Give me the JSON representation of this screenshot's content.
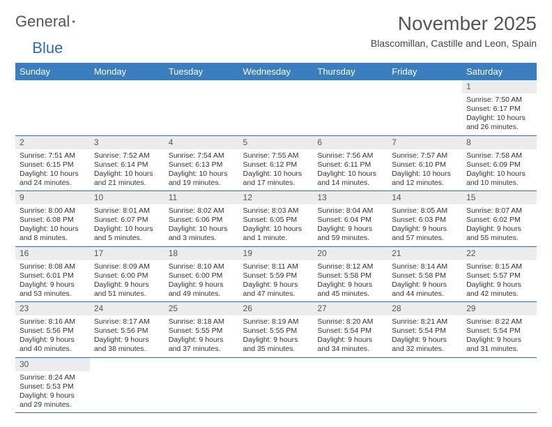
{
  "brand": {
    "part1": "General",
    "part2": "Blue"
  },
  "title": "November 2025",
  "subtitle": "Blascomillan, Castille and Leon, Spain",
  "weekdays": [
    "Sunday",
    "Monday",
    "Tuesday",
    "Wednesday",
    "Thursday",
    "Friday",
    "Saturday"
  ],
  "colors": {
    "header_bg": "#3a7ebf",
    "border": "#2f6fa8",
    "daynum_bg": "#ececec"
  },
  "weeks": [
    [
      null,
      null,
      null,
      null,
      null,
      null,
      {
        "n": "1",
        "sr": "Sunrise: 7:50 AM",
        "ss": "Sunset: 6:17 PM",
        "dl": "Daylight: 10 hours and 26 minutes."
      }
    ],
    [
      {
        "n": "2",
        "sr": "Sunrise: 7:51 AM",
        "ss": "Sunset: 6:15 PM",
        "dl": "Daylight: 10 hours and 24 minutes."
      },
      {
        "n": "3",
        "sr": "Sunrise: 7:52 AM",
        "ss": "Sunset: 6:14 PM",
        "dl": "Daylight: 10 hours and 21 minutes."
      },
      {
        "n": "4",
        "sr": "Sunrise: 7:54 AM",
        "ss": "Sunset: 6:13 PM",
        "dl": "Daylight: 10 hours and 19 minutes."
      },
      {
        "n": "5",
        "sr": "Sunrise: 7:55 AM",
        "ss": "Sunset: 6:12 PM",
        "dl": "Daylight: 10 hours and 17 minutes."
      },
      {
        "n": "6",
        "sr": "Sunrise: 7:56 AM",
        "ss": "Sunset: 6:11 PM",
        "dl": "Daylight: 10 hours and 14 minutes."
      },
      {
        "n": "7",
        "sr": "Sunrise: 7:57 AM",
        "ss": "Sunset: 6:10 PM",
        "dl": "Daylight: 10 hours and 12 minutes."
      },
      {
        "n": "8",
        "sr": "Sunrise: 7:58 AM",
        "ss": "Sunset: 6:09 PM",
        "dl": "Daylight: 10 hours and 10 minutes."
      }
    ],
    [
      {
        "n": "9",
        "sr": "Sunrise: 8:00 AM",
        "ss": "Sunset: 6:08 PM",
        "dl": "Daylight: 10 hours and 8 minutes."
      },
      {
        "n": "10",
        "sr": "Sunrise: 8:01 AM",
        "ss": "Sunset: 6:07 PM",
        "dl": "Daylight: 10 hours and 5 minutes."
      },
      {
        "n": "11",
        "sr": "Sunrise: 8:02 AM",
        "ss": "Sunset: 6:06 PM",
        "dl": "Daylight: 10 hours and 3 minutes."
      },
      {
        "n": "12",
        "sr": "Sunrise: 8:03 AM",
        "ss": "Sunset: 6:05 PM",
        "dl": "Daylight: 10 hours and 1 minute."
      },
      {
        "n": "13",
        "sr": "Sunrise: 8:04 AM",
        "ss": "Sunset: 6:04 PM",
        "dl": "Daylight: 9 hours and 59 minutes."
      },
      {
        "n": "14",
        "sr": "Sunrise: 8:05 AM",
        "ss": "Sunset: 6:03 PM",
        "dl": "Daylight: 9 hours and 57 minutes."
      },
      {
        "n": "15",
        "sr": "Sunrise: 8:07 AM",
        "ss": "Sunset: 6:02 PM",
        "dl": "Daylight: 9 hours and 55 minutes."
      }
    ],
    [
      {
        "n": "16",
        "sr": "Sunrise: 8:08 AM",
        "ss": "Sunset: 6:01 PM",
        "dl": "Daylight: 9 hours and 53 minutes."
      },
      {
        "n": "17",
        "sr": "Sunrise: 8:09 AM",
        "ss": "Sunset: 6:00 PM",
        "dl": "Daylight: 9 hours and 51 minutes."
      },
      {
        "n": "18",
        "sr": "Sunrise: 8:10 AM",
        "ss": "Sunset: 6:00 PM",
        "dl": "Daylight: 9 hours and 49 minutes."
      },
      {
        "n": "19",
        "sr": "Sunrise: 8:11 AM",
        "ss": "Sunset: 5:59 PM",
        "dl": "Daylight: 9 hours and 47 minutes."
      },
      {
        "n": "20",
        "sr": "Sunrise: 8:12 AM",
        "ss": "Sunset: 5:58 PM",
        "dl": "Daylight: 9 hours and 45 minutes."
      },
      {
        "n": "21",
        "sr": "Sunrise: 8:14 AM",
        "ss": "Sunset: 5:58 PM",
        "dl": "Daylight: 9 hours and 44 minutes."
      },
      {
        "n": "22",
        "sr": "Sunrise: 8:15 AM",
        "ss": "Sunset: 5:57 PM",
        "dl": "Daylight: 9 hours and 42 minutes."
      }
    ],
    [
      {
        "n": "23",
        "sr": "Sunrise: 8:16 AM",
        "ss": "Sunset: 5:56 PM",
        "dl": "Daylight: 9 hours and 40 minutes."
      },
      {
        "n": "24",
        "sr": "Sunrise: 8:17 AM",
        "ss": "Sunset: 5:56 PM",
        "dl": "Daylight: 9 hours and 38 minutes."
      },
      {
        "n": "25",
        "sr": "Sunrise: 8:18 AM",
        "ss": "Sunset: 5:55 PM",
        "dl": "Daylight: 9 hours and 37 minutes."
      },
      {
        "n": "26",
        "sr": "Sunrise: 8:19 AM",
        "ss": "Sunset: 5:55 PM",
        "dl": "Daylight: 9 hours and 35 minutes."
      },
      {
        "n": "27",
        "sr": "Sunrise: 8:20 AM",
        "ss": "Sunset: 5:54 PM",
        "dl": "Daylight: 9 hours and 34 minutes."
      },
      {
        "n": "28",
        "sr": "Sunrise: 8:21 AM",
        "ss": "Sunset: 5:54 PM",
        "dl": "Daylight: 9 hours and 32 minutes."
      },
      {
        "n": "29",
        "sr": "Sunrise: 8:22 AM",
        "ss": "Sunset: 5:54 PM",
        "dl": "Daylight: 9 hours and 31 minutes."
      }
    ],
    [
      {
        "n": "30",
        "sr": "Sunrise: 8:24 AM",
        "ss": "Sunset: 5:53 PM",
        "dl": "Daylight: 9 hours and 29 minutes."
      },
      null,
      null,
      null,
      null,
      null,
      null
    ]
  ]
}
